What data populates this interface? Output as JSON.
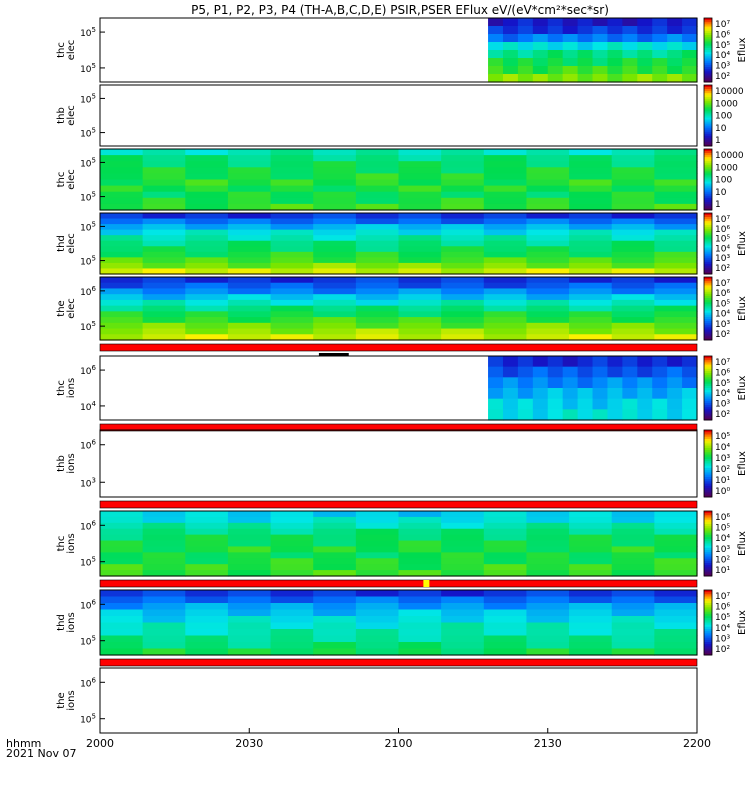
{
  "chart_data": {
    "type": "heatmap",
    "title": "P5, P1, P2, P3, P4 (TH-A,B,C,D,E) PSIR,PSER EFlux eV/(eV*cm²*sec*sr)",
    "x_axis": {
      "ticks": [
        "2000",
        "2030",
        "2100",
        "2130",
        "2200"
      ],
      "range": [
        "20:00",
        "22:00"
      ],
      "label_line1": "hhmm",
      "label_line2": "2021 Nov 07"
    },
    "colorbar_label": "Eflux",
    "panels": [
      {
        "name": "thc elec",
        "label1": "thc",
        "label2": "elec",
        "y_ticks": [
          {
            "b": "10",
            "e": "5"
          },
          {
            "b": "10",
            "e": "5"
          }
        ],
        "data_start": "21:18",
        "flag_bar": false,
        "colorbar": [
          "10⁷",
          "10⁶",
          "10⁵",
          "10⁴",
          "10³",
          "10²"
        ],
        "colorbar_label": "Eflux",
        "rows": [
          0.15,
          0.2,
          0.3,
          0.45,
          0.55,
          0.6,
          0.65,
          0.72
        ]
      },
      {
        "name": "thb elec",
        "label1": "thb",
        "label2": "elec",
        "y_ticks": [
          {
            "b": "10",
            "e": "5"
          },
          {
            "b": "10",
            "e": "5"
          }
        ],
        "data_start": null,
        "flag_bar": false,
        "colorbar": [
          "10000",
          "1000",
          "100",
          "10",
          "1"
        ],
        "colorbar_label": "",
        "rows": []
      },
      {
        "name": "thc elec",
        "label1": "thc",
        "label2": "elec",
        "y_ticks": [
          {
            "b": "10",
            "e": "5"
          },
          {
            "b": "10",
            "e": "5"
          }
        ],
        "data_start": "20:00",
        "flag_bar": false,
        "colorbar": [
          "10000",
          "1000",
          "100",
          "10",
          "1"
        ],
        "colorbar_label": "",
        "rows": [
          0.5,
          0.55,
          0.58,
          0.6,
          0.62,
          0.63,
          0.62,
          0.6,
          0.62,
          0.65
        ]
      },
      {
        "name": "thd elec",
        "label1": "thd",
        "label2": "elec",
        "y_ticks": [
          {
            "b": "10",
            "e": "5"
          },
          {
            "b": "10",
            "e": "5"
          }
        ],
        "data_start": "20:00",
        "flag_bar": false,
        "colorbar": [
          "10⁷",
          "10⁶",
          "10⁵",
          "10⁴",
          "10³",
          "10²"
        ],
        "colorbar_label": "Eflux",
        "rows": [
          0.2,
          0.28,
          0.38,
          0.45,
          0.5,
          0.55,
          0.58,
          0.62,
          0.66,
          0.72,
          0.8
        ]
      },
      {
        "name": "the elec",
        "label1": "the",
        "label2": "elec",
        "y_ticks": [
          {
            "b": "10",
            "e": "6"
          },
          {
            "b": "10",
            "e": "5"
          }
        ],
        "data_start": "20:00",
        "flag_bar": true,
        "colorbar": [
          "10⁷",
          "10⁶",
          "10⁵",
          "10⁴",
          "10³",
          "10²"
        ],
        "colorbar_label": "Eflux",
        "rows": [
          0.2,
          0.25,
          0.32,
          0.4,
          0.48,
          0.55,
          0.6,
          0.65,
          0.7,
          0.75,
          0.8
        ]
      },
      {
        "name": "thc ions",
        "label1": "thc",
        "label2": "ions",
        "y_ticks": [
          {
            "b": "10",
            "e": "6"
          },
          {
            "b": "10",
            "e": "4"
          }
        ],
        "data_start": "21:18",
        "flag_bar": true,
        "colorbar": [
          "10⁷",
          "10⁶",
          "10⁵",
          "10⁴",
          "10³",
          "10²"
        ],
        "colorbar_label": "Eflux",
        "rows": [
          0.18,
          0.25,
          0.32,
          0.38,
          0.42,
          0.45
        ]
      },
      {
        "name": "thb ions",
        "label1": "thb",
        "label2": "ions",
        "y_ticks": [
          {
            "b": "10",
            "e": "6"
          },
          {
            "b": "10",
            "e": "3"
          }
        ],
        "data_start": null,
        "flag_bar": true,
        "colorbar": [
          "10⁵",
          "10⁴",
          "10³",
          "10²",
          "10¹",
          "10⁰"
        ],
        "colorbar_label": "Eflux",
        "rows": []
      },
      {
        "name": "thc ions",
        "label1": "thc",
        "label2": "ions",
        "y_ticks": [
          {
            "b": "10",
            "e": "6"
          },
          {
            "b": "10",
            "e": "5"
          }
        ],
        "data_start": "20:00",
        "flag_bar": true,
        "colorbar": [
          "10⁶",
          "10⁵",
          "10⁴",
          "10³",
          "10²",
          "10¹"
        ],
        "colorbar_label": "Eflux",
        "rows": [
          0.42,
          0.45,
          0.5,
          0.55,
          0.58,
          0.6,
          0.62,
          0.6,
          0.62,
          0.64,
          0.65
        ]
      },
      {
        "name": "thd ions",
        "label1": "thd",
        "label2": "ions",
        "y_ticks": [
          {
            "b": "10",
            "e": "6"
          },
          {
            "b": "10",
            "e": "5"
          }
        ],
        "data_start": "20:00",
        "flag_bar": true,
        "colorbar": [
          "10⁷",
          "10⁶",
          "10⁵",
          "10⁴",
          "10³",
          "10²"
        ],
        "colorbar_label": "Eflux",
        "rows": [
          0.2,
          0.28,
          0.35,
          0.4,
          0.44,
          0.48,
          0.5,
          0.53,
          0.56,
          0.6
        ]
      },
      {
        "name": "the ions",
        "label1": "the",
        "label2": "ions",
        "y_ticks": [
          {
            "b": "10",
            "e": "6"
          },
          {
            "b": "10",
            "e": "5"
          }
        ],
        "data_start": null,
        "flag_bar": false,
        "colorbar": [],
        "colorbar_label": "",
        "rows": []
      }
    ]
  }
}
